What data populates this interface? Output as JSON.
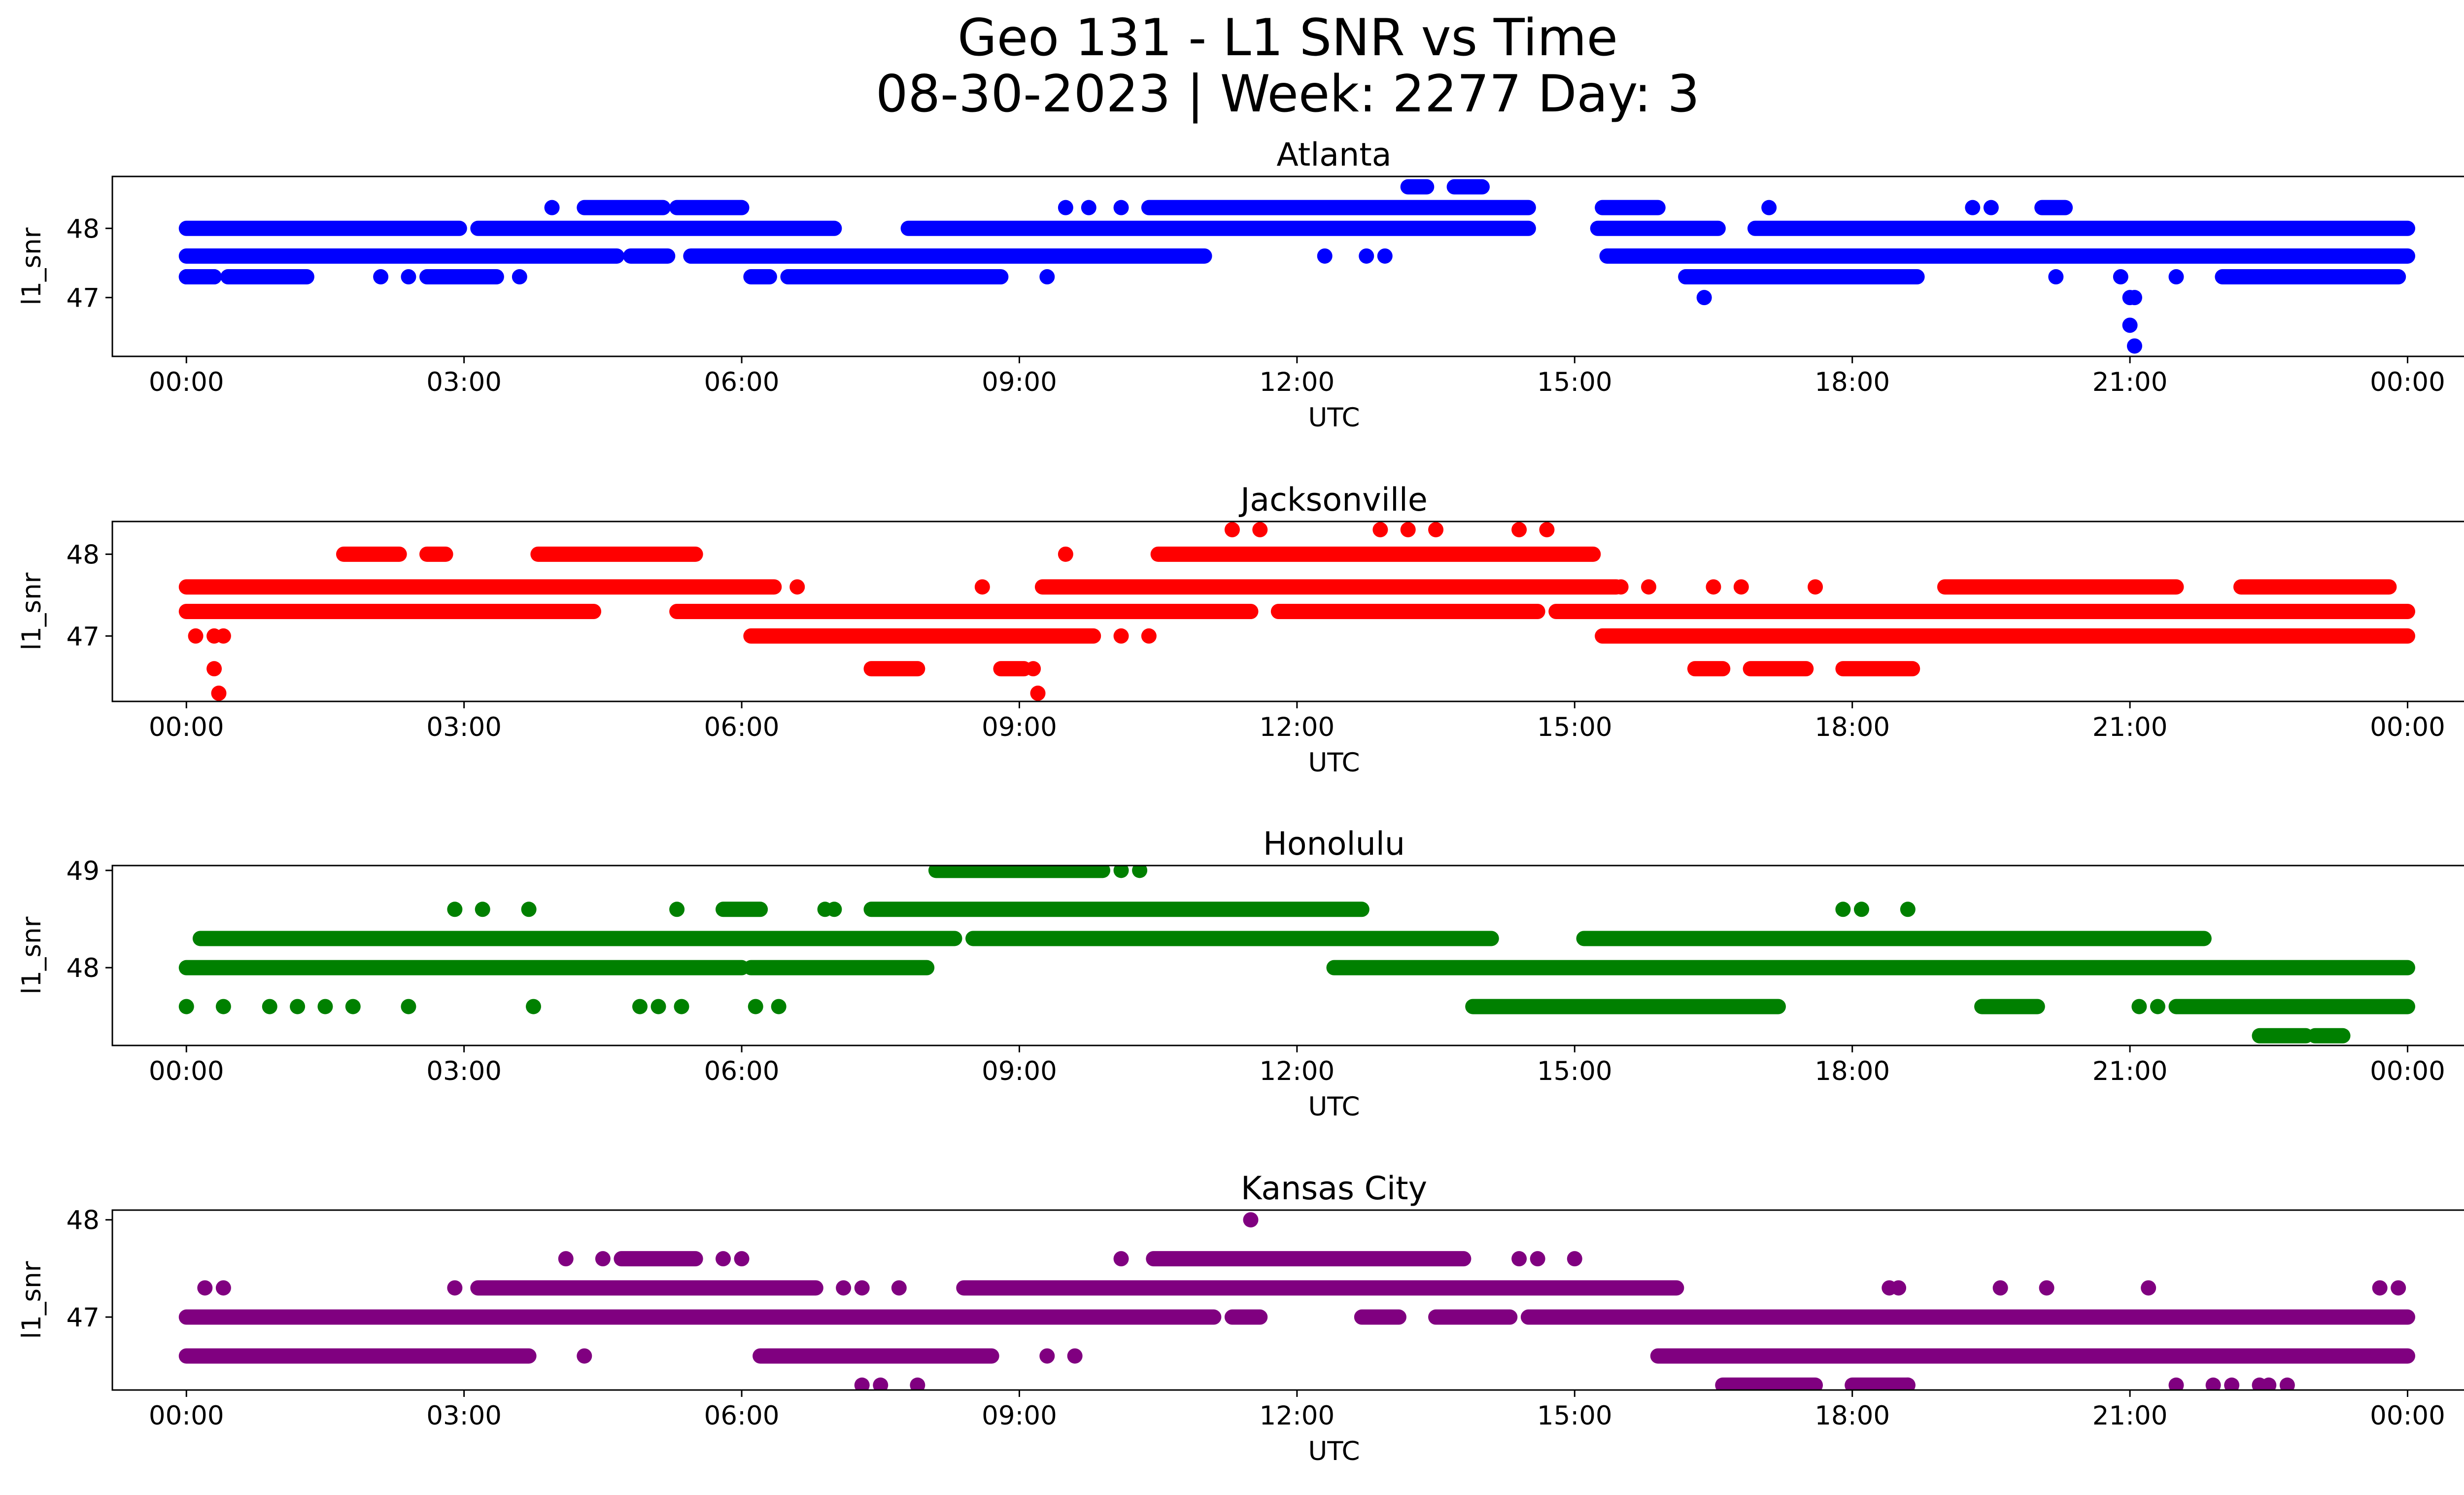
{
  "figure": {
    "title_line_1": "Geo 131 - L1 SNR vs Time",
    "title_line_2": "08-30-2023 | Week: 2277 Day: 3"
  },
  "chart_data": [
    {
      "type": "scatter",
      "title": "Atlanta",
      "xlabel": "UTC",
      "ylabel": "l1_snr",
      "color": "#0000ff",
      "xlim": [
        -0.8,
        25.6
      ],
      "ylim": [
        46.15,
        48.75
      ],
      "xticks": [
        "00:00",
        "03:00",
        "06:00",
        "09:00",
        "12:00",
        "15:00",
        "18:00",
        "21:00",
        "00:00"
      ],
      "yticks": [
        47,
        48
      ],
      "segments": [
        {
          "y": 48.0,
          "ranges": [
            [
              0.0,
              2.95
            ],
            [
              3.15,
              7.0
            ],
            [
              7.8,
              14.5
            ],
            [
              15.25,
              16.55
            ],
            [
              16.95,
              24.0
            ]
          ]
        },
        {
          "y": 47.6,
          "ranges": [
            [
              0.0,
              4.65
            ],
            [
              4.8,
              5.2
            ],
            [
              5.45,
              11.0
            ],
            [
              15.35,
              24.0
            ]
          ]
        },
        {
          "y": 47.3,
          "ranges": [
            [
              0.0,
              0.3
            ],
            [
              0.45,
              1.3
            ],
            [
              2.6,
              3.35
            ],
            [
              6.1,
              6.3
            ],
            [
              6.5,
              8.8
            ],
            [
              16.2,
              18.7
            ],
            [
              22.0,
              23.9
            ]
          ]
        },
        {
          "y": 48.3,
          "ranges": [
            [
              4.3,
              5.15
            ],
            [
              5.3,
              6.0
            ],
            [
              10.4,
              14.5
            ],
            [
              15.3,
              15.9
            ],
            [
              20.05,
              20.3
            ]
          ]
        },
        {
          "y": 48.6,
          "ranges": [
            [
              13.2,
              13.4
            ],
            [
              13.7,
              14.0
            ]
          ]
        }
      ],
      "points": [
        {
          "x": 0.0,
          "y": 47.3
        },
        {
          "x": 0.3,
          "y": 47.3
        },
        {
          "x": 2.1,
          "y": 47.3
        },
        {
          "x": 2.4,
          "y": 47.3
        },
        {
          "x": 3.6,
          "y": 47.3
        },
        {
          "x": 9.3,
          "y": 47.3
        },
        {
          "x": 20.2,
          "y": 47.3
        },
        {
          "x": 20.9,
          "y": 47.3
        },
        {
          "x": 21.5,
          "y": 47.3
        },
        {
          "x": 3.95,
          "y": 48.3
        },
        {
          "x": 9.5,
          "y": 48.3
        },
        {
          "x": 9.75,
          "y": 48.3
        },
        {
          "x": 10.1,
          "y": 48.3
        },
        {
          "x": 17.1,
          "y": 48.3
        },
        {
          "x": 19.3,
          "y": 48.3
        },
        {
          "x": 19.5,
          "y": 48.3
        },
        {
          "x": 12.3,
          "y": 47.6
        },
        {
          "x": 12.75,
          "y": 47.6
        },
        {
          "x": 12.95,
          "y": 47.6
        },
        {
          "x": 16.4,
          "y": 47.0
        },
        {
          "x": 21.0,
          "y": 47.0
        },
        {
          "x": 21.05,
          "y": 47.0
        },
        {
          "x": 21.0,
          "y": 46.6
        },
        {
          "x": 21.05,
          "y": 46.3
        }
      ]
    },
    {
      "type": "scatter",
      "title": "Jacksonville",
      "xlabel": "UTC",
      "ylabel": "l1_snr",
      "color": "#ff0000",
      "xlim": [
        -0.8,
        25.6
      ],
      "ylim": [
        46.2,
        48.4
      ],
      "xticks": [
        "00:00",
        "03:00",
        "06:00",
        "09:00",
        "12:00",
        "15:00",
        "18:00",
        "21:00",
        "00:00"
      ],
      "yticks": [
        47,
        48
      ],
      "segments": [
        {
          "y": 47.3,
          "ranges": [
            [
              0.0,
              4.4
            ],
            [
              5.3,
              11.5
            ],
            [
              11.8,
              14.6
            ],
            [
              14.8,
              24.0
            ]
          ]
        },
        {
          "y": 47.6,
          "ranges": [
            [
              0.0,
              6.35
            ],
            [
              9.25,
              15.45
            ],
            [
              19.0,
              21.5
            ],
            [
              22.2,
              23.8
            ]
          ]
        },
        {
          "y": 47.0,
          "ranges": [
            [
              6.1,
              9.8
            ],
            [
              15.3,
              24.0
            ]
          ]
        },
        {
          "y": 48.0,
          "ranges": [
            [
              1.7,
              2.3
            ],
            [
              2.6,
              2.8
            ],
            [
              3.8,
              5.5
            ],
            [
              10.5,
              15.2
            ]
          ]
        },
        {
          "y": 46.6,
          "ranges": [
            [
              7.4,
              7.9
            ],
            [
              8.8,
              9.05
            ],
            [
              16.3,
              16.6
            ],
            [
              16.9,
              17.5
            ],
            [
              17.9,
              18.65
            ]
          ]
        }
      ],
      "points": [
        {
          "x": 0.1,
          "y": 47.0
        },
        {
          "x": 0.3,
          "y": 47.0
        },
        {
          "x": 0.4,
          "y": 47.0
        },
        {
          "x": 0.3,
          "y": 46.6
        },
        {
          "x": 0.35,
          "y": 46.3
        },
        {
          "x": 9.15,
          "y": 46.6
        },
        {
          "x": 9.2,
          "y": 46.3
        },
        {
          "x": 9.5,
          "y": 48.0
        },
        {
          "x": 10.1,
          "y": 47.0
        },
        {
          "x": 10.4,
          "y": 47.0
        },
        {
          "x": 11.3,
          "y": 48.3
        },
        {
          "x": 11.6,
          "y": 48.3
        },
        {
          "x": 12.9,
          "y": 48.3
        },
        {
          "x": 13.2,
          "y": 48.3
        },
        {
          "x": 13.5,
          "y": 48.3
        },
        {
          "x": 14.4,
          "y": 48.3
        },
        {
          "x": 14.7,
          "y": 48.3
        },
        {
          "x": 15.5,
          "y": 47.6
        },
        {
          "x": 15.8,
          "y": 47.6
        },
        {
          "x": 16.5,
          "y": 47.6
        },
        {
          "x": 16.8,
          "y": 47.6
        },
        {
          "x": 17.6,
          "y": 47.6
        },
        {
          "x": 8.6,
          "y": 47.6
        },
        {
          "x": 6.6,
          "y": 47.6
        }
      ]
    },
    {
      "type": "scatter",
      "title": "Honolulu",
      "xlabel": "UTC",
      "ylabel": "l1_snr",
      "color": "#008000",
      "xlim": [
        -0.8,
        25.6
      ],
      "ylim": [
        47.2,
        49.05
      ],
      "xticks": [
        "00:00",
        "03:00",
        "06:00",
        "09:00",
        "12:00",
        "15:00",
        "18:00",
        "21:00",
        "00:00"
      ],
      "yticks": [
        48,
        49
      ],
      "segments": [
        {
          "y": 48.3,
          "ranges": [
            [
              0.15,
              8.3
            ],
            [
              8.5,
              14.1
            ],
            [
              15.1,
              21.8
            ]
          ]
        },
        {
          "y": 48.0,
          "ranges": [
            [
              0.0,
              6.0
            ],
            [
              6.1,
              8.0
            ],
            [
              12.4,
              24.0
            ]
          ]
        },
        {
          "y": 47.6,
          "ranges": [
            [
              13.9,
              17.2
            ],
            [
              19.4,
              20.0
            ],
            [
              21.5,
              24.0
            ]
          ]
        },
        {
          "y": 48.6,
          "ranges": [
            [
              7.4,
              12.7
            ],
            [
              5.8,
              6.2
            ]
          ]
        },
        {
          "y": 49.0,
          "ranges": [
            [
              8.1,
              9.9
            ]
          ]
        },
        {
          "y": 47.3,
          "ranges": [
            [
              22.4,
              22.9
            ],
            [
              23.0,
              23.3
            ]
          ]
        }
      ],
      "points": [
        {
          "x": 0.0,
          "y": 47.6
        },
        {
          "x": 0.4,
          "y": 47.6
        },
        {
          "x": 0.9,
          "y": 47.6
        },
        {
          "x": 1.2,
          "y": 47.6
        },
        {
          "x": 1.5,
          "y": 47.6
        },
        {
          "x": 1.8,
          "y": 47.6
        },
        {
          "x": 2.4,
          "y": 47.6
        },
        {
          "x": 3.75,
          "y": 47.6
        },
        {
          "x": 4.9,
          "y": 47.6
        },
        {
          "x": 5.1,
          "y": 47.6
        },
        {
          "x": 5.35,
          "y": 47.6
        },
        {
          "x": 6.15,
          "y": 47.6
        },
        {
          "x": 6.4,
          "y": 47.6
        },
        {
          "x": 2.9,
          "y": 48.6
        },
        {
          "x": 3.2,
          "y": 48.6
        },
        {
          "x": 3.7,
          "y": 48.6
        },
        {
          "x": 5.3,
          "y": 48.6
        },
        {
          "x": 6.9,
          "y": 48.6
        },
        {
          "x": 7.0,
          "y": 48.6
        },
        {
          "x": 10.1,
          "y": 49.0
        },
        {
          "x": 10.3,
          "y": 49.0
        },
        {
          "x": 17.9,
          "y": 48.6
        },
        {
          "x": 18.1,
          "y": 48.6
        },
        {
          "x": 18.6,
          "y": 48.6
        },
        {
          "x": 21.1,
          "y": 47.6
        },
        {
          "x": 21.3,
          "y": 47.6
        }
      ]
    },
    {
      "type": "scatter",
      "title": "Kansas City",
      "xlabel": "UTC",
      "ylabel": "l1_snr",
      "color": "#800080",
      "xlim": [
        -0.8,
        25.6
      ],
      "ylim": [
        46.25,
        48.1
      ],
      "xticks": [
        "00:00",
        "03:00",
        "06:00",
        "09:00",
        "12:00",
        "15:00",
        "18:00",
        "21:00",
        "00:00"
      ],
      "yticks": [
        47,
        48
      ],
      "segments": [
        {
          "y": 47.0,
          "ranges": [
            [
              0.0,
              11.1
            ],
            [
              11.3,
              11.6
            ],
            [
              12.7,
              13.1
            ],
            [
              13.5,
              14.3
            ],
            [
              14.5,
              24.0
            ]
          ]
        },
        {
          "y": 46.6,
          "ranges": [
            [
              0.0,
              3.7
            ],
            [
              6.2,
              8.7
            ],
            [
              15.9,
              24.0
            ]
          ]
        },
        {
          "y": 47.3,
          "ranges": [
            [
              3.15,
              6.8
            ],
            [
              8.4,
              16.1
            ]
          ]
        },
        {
          "y": 47.6,
          "ranges": [
            [
              4.7,
              5.5
            ],
            [
              10.45,
              13.8
            ]
          ]
        },
        {
          "y": 46.3,
          "ranges": [
            [
              16.6,
              17.6
            ],
            [
              18.0,
              18.6
            ]
          ]
        }
      ],
      "points": [
        {
          "x": 0.2,
          "y": 47.3
        },
        {
          "x": 0.4,
          "y": 47.3
        },
        {
          "x": 2.9,
          "y": 47.3
        },
        {
          "x": 7.1,
          "y": 47.3
        },
        {
          "x": 7.3,
          "y": 47.3
        },
        {
          "x": 7.7,
          "y": 47.3
        },
        {
          "x": 18.4,
          "y": 47.3
        },
        {
          "x": 18.5,
          "y": 47.3
        },
        {
          "x": 19.6,
          "y": 47.3
        },
        {
          "x": 20.1,
          "y": 47.3
        },
        {
          "x": 21.2,
          "y": 47.3
        },
        {
          "x": 23.7,
          "y": 47.3
        },
        {
          "x": 23.9,
          "y": 47.3
        },
        {
          "x": 4.1,
          "y": 47.6
        },
        {
          "x": 4.5,
          "y": 47.6
        },
        {
          "x": 5.8,
          "y": 47.6
        },
        {
          "x": 6.0,
          "y": 47.6
        },
        {
          "x": 10.1,
          "y": 47.6
        },
        {
          "x": 14.4,
          "y": 47.6
        },
        {
          "x": 14.6,
          "y": 47.6
        },
        {
          "x": 15.0,
          "y": 47.6
        },
        {
          "x": 4.3,
          "y": 46.6
        },
        {
          "x": 9.3,
          "y": 46.6
        },
        {
          "x": 9.6,
          "y": 46.6
        },
        {
          "x": 11.5,
          "y": 48.0
        },
        {
          "x": 7.3,
          "y": 46.3
        },
        {
          "x": 7.5,
          "y": 46.3
        },
        {
          "x": 7.9,
          "y": 46.3
        },
        {
          "x": 18.6,
          "y": 46.3
        },
        {
          "x": 21.5,
          "y": 46.3
        },
        {
          "x": 21.9,
          "y": 46.3
        },
        {
          "x": 22.1,
          "y": 46.3
        },
        {
          "x": 22.4,
          "y": 46.3
        },
        {
          "x": 22.7,
          "y": 46.3
        },
        {
          "x": 22.5,
          "y": 46.3
        }
      ]
    }
  ]
}
